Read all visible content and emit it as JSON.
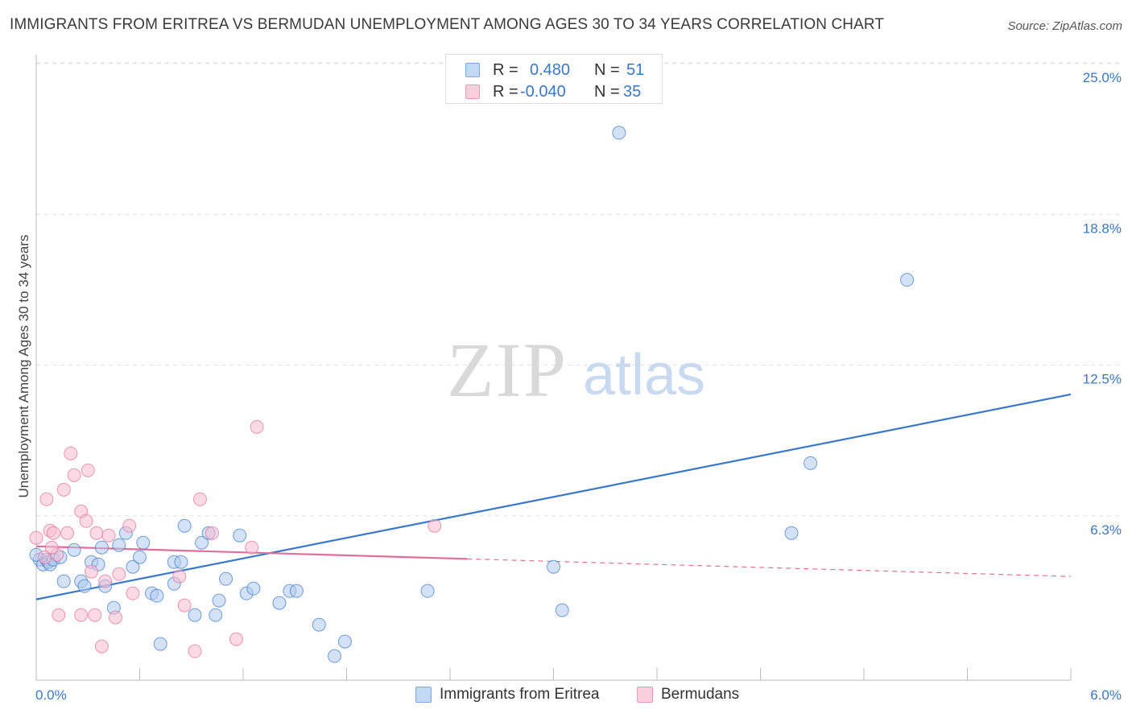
{
  "header": {
    "title": "IMMIGRANTS FROM ERITREA VS BERMUDAN UNEMPLOYMENT AMONG AGES 30 TO 34 YEARS CORRELATION CHART",
    "source": "Source: ZipAtlas.com"
  },
  "watermark": {
    "zip": "ZIP",
    "atlas": "atlas"
  },
  "legend": {
    "rows": [
      {
        "r_label": "R =",
        "r_value": "0.480",
        "n_label": "N =",
        "n_value": "51"
      },
      {
        "r_label": "R =",
        "r_value": "-0.040",
        "n_label": "N =",
        "n_value": "35"
      }
    ]
  },
  "chart_data": {
    "type": "scatter",
    "title": "IMMIGRANTS FROM ERITREA VS BERMUDAN UNEMPLOYMENT AMONG AGES 30 TO 34 YEARS CORRELATION CHART",
    "xlabel": "",
    "ylabel": "Unemployment Among Ages 30 to 34 years",
    "xlim": [
      0,
      6
    ],
    "ylim": [
      0,
      25
    ],
    "x_tick_labels": [
      "0.0%",
      "6.0%"
    ],
    "y_tick_labels": [
      "6.3%",
      "12.5%",
      "18.8%",
      "25.0%"
    ],
    "y_ticks": [
      6.25,
      12.5,
      18.75,
      25
    ],
    "colors": {
      "blue": "#3a78c9",
      "blue_fill": "#aecbf0",
      "pink": "#e0709a",
      "pink_fill": "#f7bcd0"
    },
    "series": [
      {
        "name": "Immigrants from Eritrea",
        "color": "blue",
        "trend": {
          "x0": 0,
          "y0": 3.35,
          "x1": 6,
          "y1": 11.85,
          "dashed_from": null
        },
        "points": [
          [
            0.02,
            5.0
          ],
          [
            0.04,
            4.8
          ],
          [
            0.06,
            5.0
          ],
          [
            0.07,
            4.9
          ],
          [
            0.08,
            4.8
          ],
          [
            0.1,
            5.0
          ],
          [
            0.14,
            5.1
          ],
          [
            0.22,
            5.4
          ],
          [
            0.26,
            4.1
          ],
          [
            0.28,
            3.9
          ],
          [
            0.32,
            4.9
          ],
          [
            0.36,
            4.8
          ],
          [
            0.38,
            5.5
          ],
          [
            0.45,
            3.0
          ],
          [
            0.48,
            5.6
          ],
          [
            0.52,
            6.1
          ],
          [
            0.56,
            4.7
          ],
          [
            0.6,
            5.1
          ],
          [
            0.62,
            5.7
          ],
          [
            0.67,
            3.6
          ],
          [
            0.7,
            3.5
          ],
          [
            0.72,
            1.5
          ],
          [
            0.8,
            4.9
          ],
          [
            0.8,
            4.0
          ],
          [
            0.84,
            4.9
          ],
          [
            0.86,
            6.4
          ],
          [
            0.92,
            2.7
          ],
          [
            0.96,
            5.7
          ],
          [
            1.0,
            6.1
          ],
          [
            1.04,
            2.7
          ],
          [
            1.06,
            3.3
          ],
          [
            1.1,
            4.2
          ],
          [
            1.18,
            6.0
          ],
          [
            1.22,
            3.6
          ],
          [
            1.26,
            3.8
          ],
          [
            1.41,
            3.2
          ],
          [
            1.47,
            3.7
          ],
          [
            1.51,
            3.7
          ],
          [
            1.64,
            2.3
          ],
          [
            1.73,
            1.0
          ],
          [
            1.79,
            1.6
          ],
          [
            2.27,
            3.7
          ],
          [
            3.0,
            4.7
          ],
          [
            3.05,
            2.9
          ],
          [
            3.38,
            22.7
          ],
          [
            4.38,
            6.1
          ],
          [
            4.49,
            9.0
          ],
          [
            5.05,
            16.6
          ],
          [
            0.0,
            5.2
          ],
          [
            0.16,
            4.1
          ],
          [
            0.4,
            3.9
          ]
        ]
      },
      {
        "name": "Bermudans",
        "color": "pink",
        "trend": {
          "x0": 0,
          "y0": 5.55,
          "x1": 6,
          "y1": 4.3,
          "dashed_from": 2.5
        },
        "points": [
          [
            0.0,
            5.9
          ],
          [
            0.05,
            5.1
          ],
          [
            0.06,
            7.5
          ],
          [
            0.08,
            6.2
          ],
          [
            0.1,
            6.1
          ],
          [
            0.12,
            5.2
          ],
          [
            0.13,
            2.7
          ],
          [
            0.16,
            7.9
          ],
          [
            0.18,
            6.1
          ],
          [
            0.2,
            9.4
          ],
          [
            0.22,
            8.5
          ],
          [
            0.26,
            2.7
          ],
          [
            0.26,
            7.0
          ],
          [
            0.29,
            6.6
          ],
          [
            0.3,
            8.7
          ],
          [
            0.32,
            4.5
          ],
          [
            0.34,
            2.7
          ],
          [
            0.35,
            6.1
          ],
          [
            0.38,
            1.4
          ],
          [
            0.4,
            4.1
          ],
          [
            0.42,
            6.0
          ],
          [
            0.46,
            2.6
          ],
          [
            0.48,
            4.4
          ],
          [
            0.54,
            6.4
          ],
          [
            0.56,
            3.6
          ],
          [
            0.83,
            4.3
          ],
          [
            0.86,
            3.1
          ],
          [
            0.92,
            1.2
          ],
          [
            0.95,
            7.5
          ],
          [
            1.02,
            6.1
          ],
          [
            1.16,
            1.7
          ],
          [
            1.25,
            5.5
          ],
          [
            1.28,
            10.5
          ],
          [
            2.31,
            6.4
          ],
          [
            0.09,
            5.5
          ]
        ]
      }
    ]
  },
  "bottom_legend": [
    {
      "label": "Immigrants from Eritrea",
      "color": "blue"
    },
    {
      "label": "Bermudans",
      "color": "pink"
    }
  ]
}
